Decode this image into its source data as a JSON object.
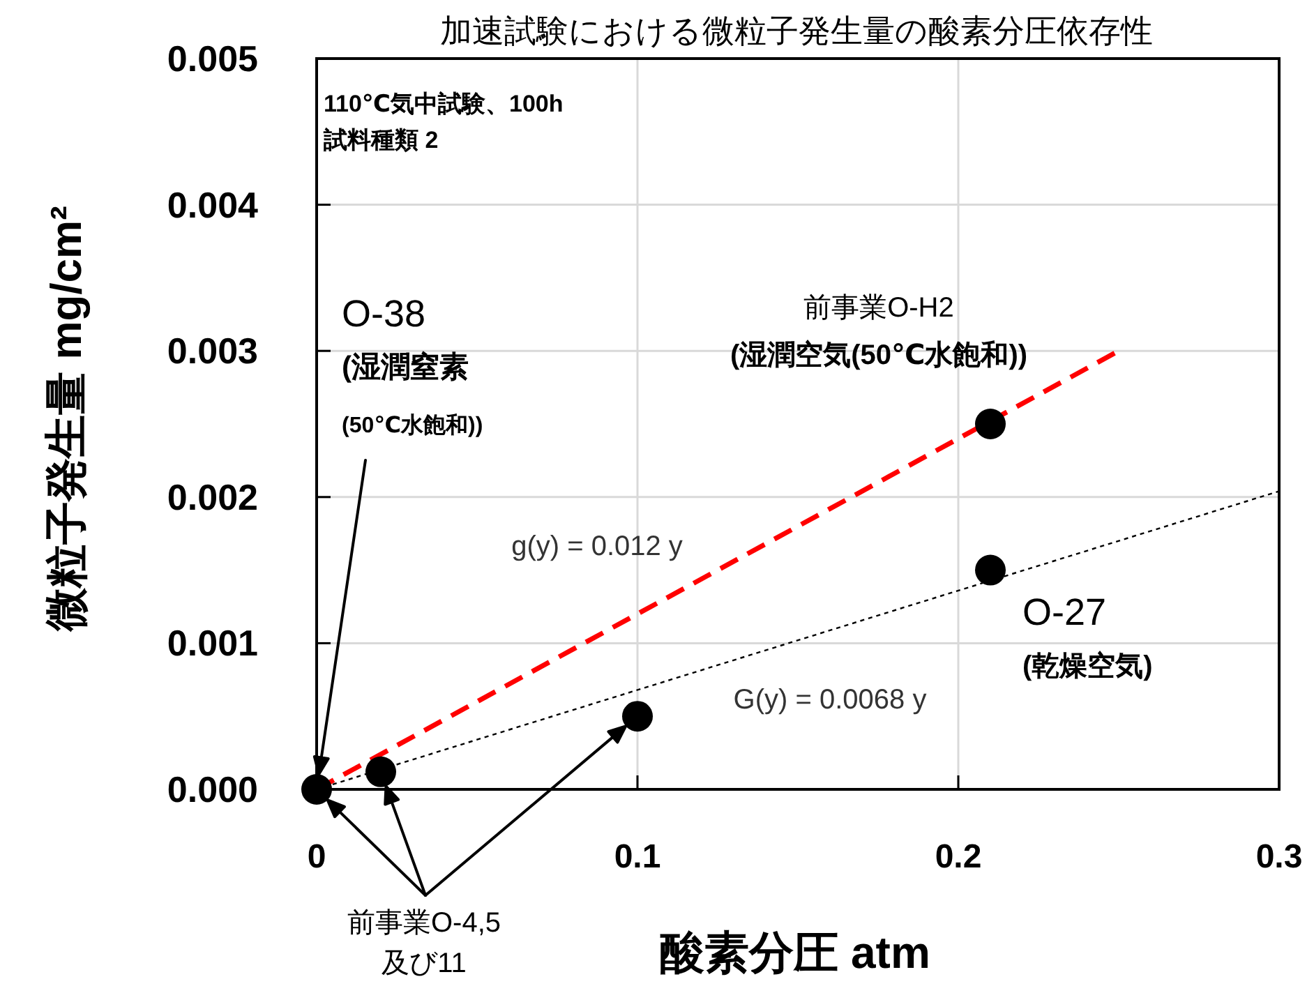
{
  "chart_data": {
    "type": "scatter",
    "title": "加速試験における微粒子発生量の酸素分圧依存性",
    "xlabel": "酸素分圧 atm",
    "ylabel": "微粒子発生量 mg/cm²",
    "xlim": [
      0,
      0.3
    ],
    "ylim": [
      0,
      0.005
    ],
    "xticks": [
      0,
      0.1,
      0.2,
      0.3
    ],
    "yticks": [
      {
        "value": 0,
        "label": "0.000"
      },
      {
        "value": 0.001,
        "label": "0.001"
      },
      {
        "value": 0.002,
        "label": "0.002"
      },
      {
        "value": 0.003,
        "label": "0.003"
      },
      {
        "value": 0.004,
        "label": "0.004"
      },
      {
        "value": 0.005,
        "label": "0.005"
      }
    ],
    "grid": true,
    "series": [
      {
        "color": "#000000",
        "marker": "circle",
        "x": [
          0,
          0.02,
          0.1,
          0.21,
          0.21
        ],
        "values": [
          0,
          0.00012,
          0.0005,
          0.0025,
          0.0015
        ]
      },
      {
        "type": "line",
        "color": "#ff0000",
        "marker": "none",
        "line_style": "dashed",
        "x": [
          0,
          0.25
        ],
        "values": [
          0,
          0.003
        ]
      },
      {
        "type": "line",
        "color": "#000000",
        "marker": "none",
        "line_style": "dotted",
        "x": [
          0,
          0.3
        ],
        "values": [
          0,
          0.00204
        ]
      }
    ],
    "annotations": [
      "110℃気中試験、100h\n試料種類 2",
      "O-38\n(湿潤窒素\n(50℃水飽和))",
      {
        "text": "前事業O-H2\n(湿潤空気(50℃水飽和))",
        "x": 0.21,
        "y": 0.0025
      },
      {
        "text": "O-27\n(乾燥空気)",
        "x": 0.21,
        "y": 0.0015
      },
      "前事業O-4,5\n及び11",
      "g(y) = 0.012 y",
      "G(y) = 0.0068 y"
    ]
  }
}
